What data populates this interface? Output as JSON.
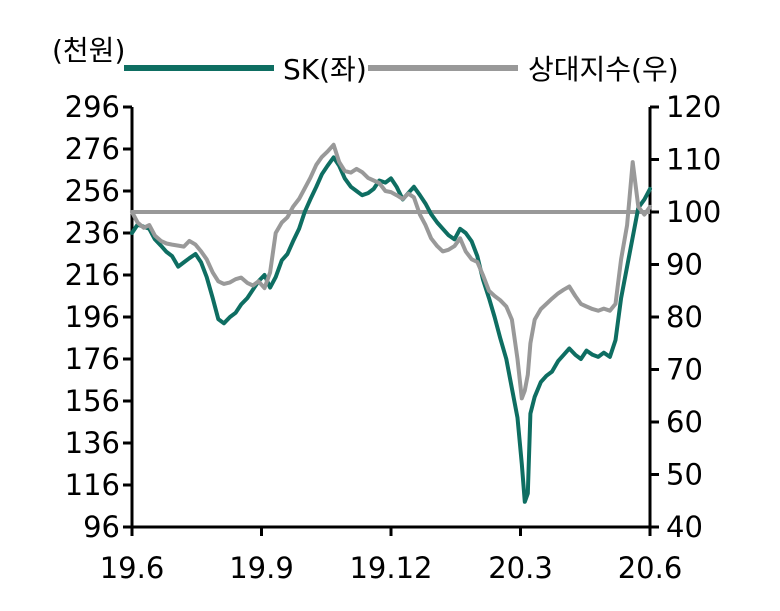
{
  "chart_data": {
    "type": "line",
    "unit_label": "(천원)",
    "left_axis": {
      "range": [
        96,
        296
      ],
      "ticks": [
        "296",
        "276",
        "256",
        "236",
        "216",
        "196",
        "176",
        "156",
        "136",
        "116",
        "96"
      ]
    },
    "right_axis": {
      "range": [
        40,
        120
      ],
      "ticks": [
        "120",
        "110",
        "100",
        "90",
        "80",
        "70",
        "60",
        "50",
        "40"
      ]
    },
    "x_axis": {
      "range": [
        0,
        12
      ],
      "ticks": [
        {
          "label": "19.6",
          "x": 0
        },
        {
          "label": "19.9",
          "x": 3
        },
        {
          "label": "19.12",
          "x": 6
        },
        {
          "label": "20.3",
          "x": 9
        },
        {
          "label": "20.6",
          "x": 12
        }
      ]
    },
    "grid": false,
    "legend_position": "top",
    "reference_line": {
      "axis": "right",
      "value": 100,
      "color": "#999999"
    },
    "series": [
      {
        "name": "SK(좌)",
        "axis": "left",
        "color": "#0e6e62",
        "points": [
          [
            0.0,
            236
          ],
          [
            0.13,
            240
          ],
          [
            0.27,
            239
          ],
          [
            0.4,
            238
          ],
          [
            0.53,
            233
          ],
          [
            0.67,
            230
          ],
          [
            0.8,
            227
          ],
          [
            0.93,
            225
          ],
          [
            1.07,
            220
          ],
          [
            1.2,
            222
          ],
          [
            1.33,
            224
          ],
          [
            1.47,
            226
          ],
          [
            1.6,
            222
          ],
          [
            1.73,
            215
          ],
          [
            1.87,
            205
          ],
          [
            2.0,
            195
          ],
          [
            2.13,
            193
          ],
          [
            2.27,
            196
          ],
          [
            2.4,
            198
          ],
          [
            2.53,
            202
          ],
          [
            2.67,
            205
          ],
          [
            2.8,
            209
          ],
          [
            2.93,
            213
          ],
          [
            3.07,
            216
          ],
          [
            3.2,
            210
          ],
          [
            3.33,
            215
          ],
          [
            3.47,
            223
          ],
          [
            3.6,
            226
          ],
          [
            3.73,
            232
          ],
          [
            3.87,
            238
          ],
          [
            4.0,
            246
          ],
          [
            4.13,
            252
          ],
          [
            4.27,
            258
          ],
          [
            4.4,
            264
          ],
          [
            4.53,
            268
          ],
          [
            4.67,
            272
          ],
          [
            4.8,
            268
          ],
          [
            4.93,
            262
          ],
          [
            5.07,
            258
          ],
          [
            5.2,
            256
          ],
          [
            5.33,
            254
          ],
          [
            5.47,
            255
          ],
          [
            5.6,
            257
          ],
          [
            5.73,
            261
          ],
          [
            5.87,
            260
          ],
          [
            6.0,
            262
          ],
          [
            6.13,
            258
          ],
          [
            6.27,
            252
          ],
          [
            6.4,
            255
          ],
          [
            6.53,
            258
          ],
          [
            6.67,
            254
          ],
          [
            6.8,
            250
          ],
          [
            6.93,
            245
          ],
          [
            7.07,
            241
          ],
          [
            7.2,
            238
          ],
          [
            7.33,
            235
          ],
          [
            7.47,
            233
          ],
          [
            7.6,
            238
          ],
          [
            7.73,
            236
          ],
          [
            7.87,
            232
          ],
          [
            8.0,
            225
          ],
          [
            8.13,
            214
          ],
          [
            8.27,
            205
          ],
          [
            8.4,
            196
          ],
          [
            8.53,
            186
          ],
          [
            8.67,
            176
          ],
          [
            8.8,
            162
          ],
          [
            8.93,
            148
          ],
          [
            9.03,
            126
          ],
          [
            9.1,
            108
          ],
          [
            9.17,
            112
          ],
          [
            9.23,
            150
          ],
          [
            9.33,
            158
          ],
          [
            9.47,
            165
          ],
          [
            9.6,
            168
          ],
          [
            9.73,
            170
          ],
          [
            9.87,
            175
          ],
          [
            10.0,
            178
          ],
          [
            10.13,
            181
          ],
          [
            10.27,
            178
          ],
          [
            10.4,
            176
          ],
          [
            10.53,
            180
          ],
          [
            10.67,
            178
          ],
          [
            10.8,
            177
          ],
          [
            10.93,
            179
          ],
          [
            11.07,
            177
          ],
          [
            11.2,
            185
          ],
          [
            11.33,
            205
          ],
          [
            11.47,
            220
          ],
          [
            11.6,
            234
          ],
          [
            11.73,
            248
          ],
          [
            11.87,
            252
          ],
          [
            12.0,
            257
          ]
        ]
      },
      {
        "name": "상대지수(우)",
        "axis": "right",
        "color": "#999999",
        "points": [
          [
            0.0,
            100
          ],
          [
            0.13,
            98
          ],
          [
            0.27,
            97
          ],
          [
            0.4,
            97.5
          ],
          [
            0.53,
            95.5
          ],
          [
            0.67,
            94.5
          ],
          [
            0.8,
            94
          ],
          [
            0.93,
            93.8
          ],
          [
            1.07,
            93.6
          ],
          [
            1.2,
            93.4
          ],
          [
            1.33,
            94.5
          ],
          [
            1.47,
            93.8
          ],
          [
            1.6,
            92.5
          ],
          [
            1.73,
            91
          ],
          [
            1.87,
            88.5
          ],
          [
            2.0,
            86.8
          ],
          [
            2.13,
            86.3
          ],
          [
            2.27,
            86.6
          ],
          [
            2.4,
            87.2
          ],
          [
            2.53,
            87.5
          ],
          [
            2.67,
            86.5
          ],
          [
            2.8,
            86
          ],
          [
            2.93,
            86.8
          ],
          [
            3.07,
            85.5
          ],
          [
            3.2,
            88.5
          ],
          [
            3.33,
            96
          ],
          [
            3.47,
            98
          ],
          [
            3.6,
            99
          ],
          [
            3.73,
            101
          ],
          [
            3.87,
            102.5
          ],
          [
            4.0,
            104.5
          ],
          [
            4.13,
            106.5
          ],
          [
            4.27,
            109
          ],
          [
            4.4,
            110.5
          ],
          [
            4.53,
            111.5
          ],
          [
            4.67,
            112.8
          ],
          [
            4.8,
            109.5
          ],
          [
            4.93,
            107.8
          ],
          [
            5.07,
            107.5
          ],
          [
            5.2,
            108.2
          ],
          [
            5.33,
            107.6
          ],
          [
            5.47,
            106.5
          ],
          [
            5.6,
            106
          ],
          [
            5.73,
            105.5
          ],
          [
            5.87,
            104
          ],
          [
            6.0,
            103.8
          ],
          [
            6.13,
            103.2
          ],
          [
            6.27,
            102.5
          ],
          [
            6.4,
            103.5
          ],
          [
            6.53,
            102.8
          ],
          [
            6.67,
            99.5
          ],
          [
            6.8,
            97.5
          ],
          [
            6.93,
            95
          ],
          [
            7.07,
            93.5
          ],
          [
            7.2,
            92.5
          ],
          [
            7.33,
            92.8
          ],
          [
            7.47,
            93.5
          ],
          [
            7.6,
            95
          ],
          [
            7.73,
            92.5
          ],
          [
            7.87,
            91
          ],
          [
            8.0,
            90.5
          ],
          [
            8.13,
            88
          ],
          [
            8.27,
            85
          ],
          [
            8.4,
            84
          ],
          [
            8.53,
            83.2
          ],
          [
            8.67,
            82
          ],
          [
            8.8,
            79.5
          ],
          [
            8.93,
            72
          ],
          [
            9.03,
            64.5
          ],
          [
            9.1,
            66
          ],
          [
            9.17,
            69
          ],
          [
            9.23,
            75
          ],
          [
            9.33,
            79.5
          ],
          [
            9.47,
            81.5
          ],
          [
            9.6,
            82.5
          ],
          [
            9.73,
            83.5
          ],
          [
            9.87,
            84.5
          ],
          [
            10.0,
            85.2
          ],
          [
            10.13,
            85.8
          ],
          [
            10.27,
            84
          ],
          [
            10.4,
            82.5
          ],
          [
            10.53,
            82
          ],
          [
            10.67,
            81.5
          ],
          [
            10.8,
            81.2
          ],
          [
            10.93,
            81.6
          ],
          [
            11.07,
            81.2
          ],
          [
            11.2,
            82.5
          ],
          [
            11.33,
            91
          ],
          [
            11.47,
            97.5
          ],
          [
            11.6,
            109.5
          ],
          [
            11.73,
            101
          ],
          [
            11.87,
            99.5
          ],
          [
            12.0,
            101
          ]
        ]
      }
    ]
  }
}
